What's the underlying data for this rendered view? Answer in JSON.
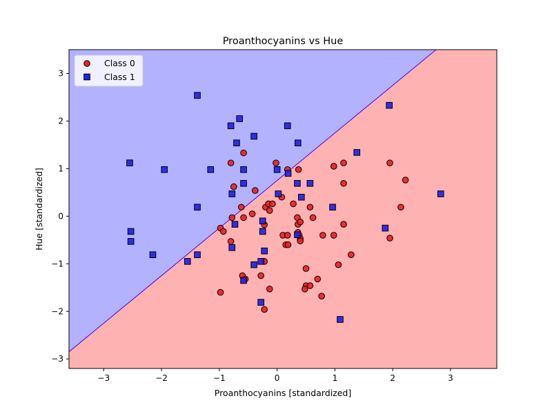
{
  "chart_data": {
    "type": "scatter",
    "title": "Proanthocyanins vs Hue",
    "xlabel": "Proanthocyanins [standardized]",
    "ylabel": "Hue [standardized]",
    "xlim": [
      -3.6,
      3.8
    ],
    "ylim": [
      -3.2,
      3.5
    ],
    "x_ticks": [
      -3,
      -2,
      -1,
      0,
      1,
      2,
      3
    ],
    "y_ticks": [
      -3,
      -2,
      -1,
      0,
      1,
      2,
      3
    ],
    "x_tick_labels": [
      "−3",
      "−2",
      "−1",
      "0",
      "1",
      "2",
      "3"
    ],
    "y_tick_labels": [
      "−3",
      "−2",
      "−1",
      "0",
      "1",
      "2",
      "3"
    ],
    "grid": false,
    "legend_position": "top-left",
    "decision_boundary": {
      "type": "linear",
      "points": [
        [
          -3.6,
          -2.85
        ],
        [
          2.75,
          3.5
        ]
      ],
      "region_above": "Class 1",
      "region_below": "Class 0",
      "colors": {
        "Class 0": "#ffb2b2",
        "Class 1": "#b2b2ff",
        "boundary": "#4400ee"
      }
    },
    "series": [
      {
        "name": "Class 0",
        "marker": "circle",
        "color": "#ee2222",
        "edge_color": "#000000",
        "points": [
          [
            -0.8,
            1.12
          ],
          [
            -0.58,
            1.33
          ],
          [
            -0.02,
            1.12
          ],
          [
            0.18,
            0.98
          ],
          [
            0.37,
            0.98
          ],
          [
            0.98,
            1.05
          ],
          [
            1.15,
            1.12
          ],
          [
            1.95,
            1.12
          ],
          [
            -0.75,
            0.62
          ],
          [
            -0.38,
            0.54
          ],
          [
            1.15,
            0.69
          ],
          [
            2.22,
            0.76
          ],
          [
            0.08,
            0.4
          ],
          [
            -0.62,
            0.19
          ],
          [
            -0.2,
            0.19
          ],
          [
            -0.15,
            0.26
          ],
          [
            -0.08,
            0.26
          ],
          [
            0.28,
            0.26
          ],
          [
            0.57,
            0.19
          ],
          [
            2.14,
            0.19
          ],
          [
            -0.13,
            0.12
          ],
          [
            -0.43,
            0.05
          ],
          [
            -0.78,
            -0.03
          ],
          [
            -0.58,
            -0.03
          ],
          [
            0.35,
            -0.03
          ],
          [
            0.62,
            -0.03
          ],
          [
            -0.98,
            -0.25
          ],
          [
            -0.93,
            -0.32
          ],
          [
            -0.22,
            -0.18
          ],
          [
            0.36,
            -0.17
          ],
          [
            0.4,
            -0.12
          ],
          [
            1.15,
            -0.17
          ],
          [
            0.1,
            -0.4
          ],
          [
            0.18,
            -0.4
          ],
          [
            0.38,
            -0.4
          ],
          [
            0.4,
            -0.47
          ],
          [
            0.4,
            -0.52
          ],
          [
            0.36,
            -0.34
          ],
          [
            0.79,
            -0.4
          ],
          [
            0.98,
            -0.4
          ],
          [
            -0.8,
            -0.53
          ],
          [
            0.15,
            -0.6
          ],
          [
            0.19,
            -0.6
          ],
          [
            1.95,
            -0.46
          ],
          [
            -0.22,
            -0.95
          ],
          [
            1.28,
            -0.81
          ],
          [
            1.06,
            -1.02
          ],
          [
            0.5,
            -1.1
          ],
          [
            -0.6,
            -1.25
          ],
          [
            -0.28,
            -1.25
          ],
          [
            -0.55,
            -1.32
          ],
          [
            0.7,
            -1.32
          ],
          [
            0.5,
            -1.46
          ],
          [
            0.57,
            -1.46
          ],
          [
            0.48,
            -1.53
          ],
          [
            -0.13,
            -1.53
          ],
          [
            -0.98,
            -1.6
          ],
          [
            0.77,
            -1.68
          ],
          [
            -0.22,
            -1.96
          ]
        ]
      },
      {
        "name": "Class 1",
        "marker": "square",
        "color": "#2222ee",
        "edge_color": "#000000",
        "points": [
          [
            -1.38,
            2.54
          ],
          [
            1.94,
            2.33
          ],
          [
            -0.65,
            2.05
          ],
          [
            -0.8,
            1.9
          ],
          [
            0.18,
            1.9
          ],
          [
            -0.4,
            1.68
          ],
          [
            -0.7,
            1.54
          ],
          [
            0.36,
            1.54
          ],
          [
            1.38,
            1.34
          ],
          [
            -2.55,
            1.12
          ],
          [
            -1.95,
            0.98
          ],
          [
            -1.15,
            0.98
          ],
          [
            -0.58,
            0.98
          ],
          [
            0.0,
            0.98
          ],
          [
            0.19,
            0.9
          ],
          [
            -0.58,
            0.69
          ],
          [
            0.35,
            0.69
          ],
          [
            0.57,
            0.69
          ],
          [
            -0.78,
            0.47
          ],
          [
            0.02,
            0.47
          ],
          [
            2.83,
            0.47
          ],
          [
            0.42,
            0.4
          ],
          [
            -1.38,
            0.19
          ],
          [
            0.96,
            0.19
          ],
          [
            -0.25,
            -0.1
          ],
          [
            -0.73,
            -0.17
          ],
          [
            1.87,
            -0.25
          ],
          [
            -2.53,
            -0.32
          ],
          [
            -0.25,
            -0.32
          ],
          [
            0.35,
            -0.39
          ],
          [
            -2.53,
            -0.53
          ],
          [
            -0.78,
            -0.66
          ],
          [
            -0.22,
            -0.73
          ],
          [
            -2.15,
            -0.81
          ],
          [
            -1.38,
            -0.81
          ],
          [
            -1.55,
            -0.95
          ],
          [
            -0.28,
            -0.95
          ],
          [
            -0.4,
            -1.02
          ],
          [
            -0.58,
            -1.35
          ],
          [
            -0.28,
            -1.81
          ],
          [
            1.09,
            -2.17
          ]
        ]
      }
    ]
  }
}
